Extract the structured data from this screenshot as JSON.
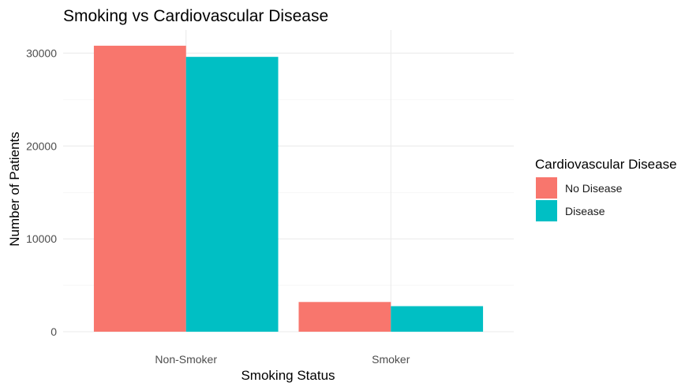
{
  "chart_data": {
    "type": "bar",
    "title": "Smoking vs Cardiovascular Disease",
    "xlabel": "Smoking Status",
    "ylabel": "Number of Patients",
    "categories": [
      "Non-Smoker",
      "Smoker"
    ],
    "series": [
      {
        "name": "No Disease",
        "color": "#F8766D",
        "values": [
          30800,
          3200
        ]
      },
      {
        "name": "Disease",
        "color": "#00BFC4",
        "values": [
          29600,
          2750
        ]
      }
    ],
    "ylim": [
      0,
      32500
    ],
    "yticks": [
      0,
      10000,
      20000,
      30000
    ],
    "ytick_labels": [
      "0",
      "10000",
      "20000",
      "30000"
    ],
    "grid": true,
    "legend": {
      "title": "Cardiovascular Disease",
      "placement": "right"
    }
  }
}
